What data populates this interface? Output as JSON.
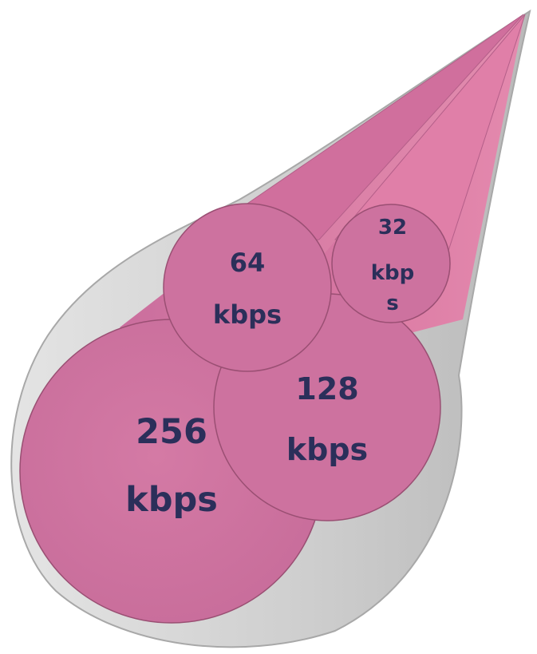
{
  "colors": {
    "outer_cone": "#cfcfcf",
    "outer_cone_edge": "#a8a8a8",
    "inner_cone": "#d9779f",
    "inner_cone_dark": "#c46a95",
    "circle_face": "#cd729f",
    "circle_edge": "#9a4f73",
    "label_text": "#2b2f5a"
  },
  "streams": [
    {
      "id": "256",
      "line1": "256",
      "line2": "kbps"
    },
    {
      "id": "128",
      "line1": "128",
      "line2": "kbps"
    },
    {
      "id": "64",
      "line1": "64",
      "line2": "kbps"
    },
    {
      "id": "32",
      "line1": "32",
      "line2": "kbp",
      "line3": "s"
    }
  ]
}
